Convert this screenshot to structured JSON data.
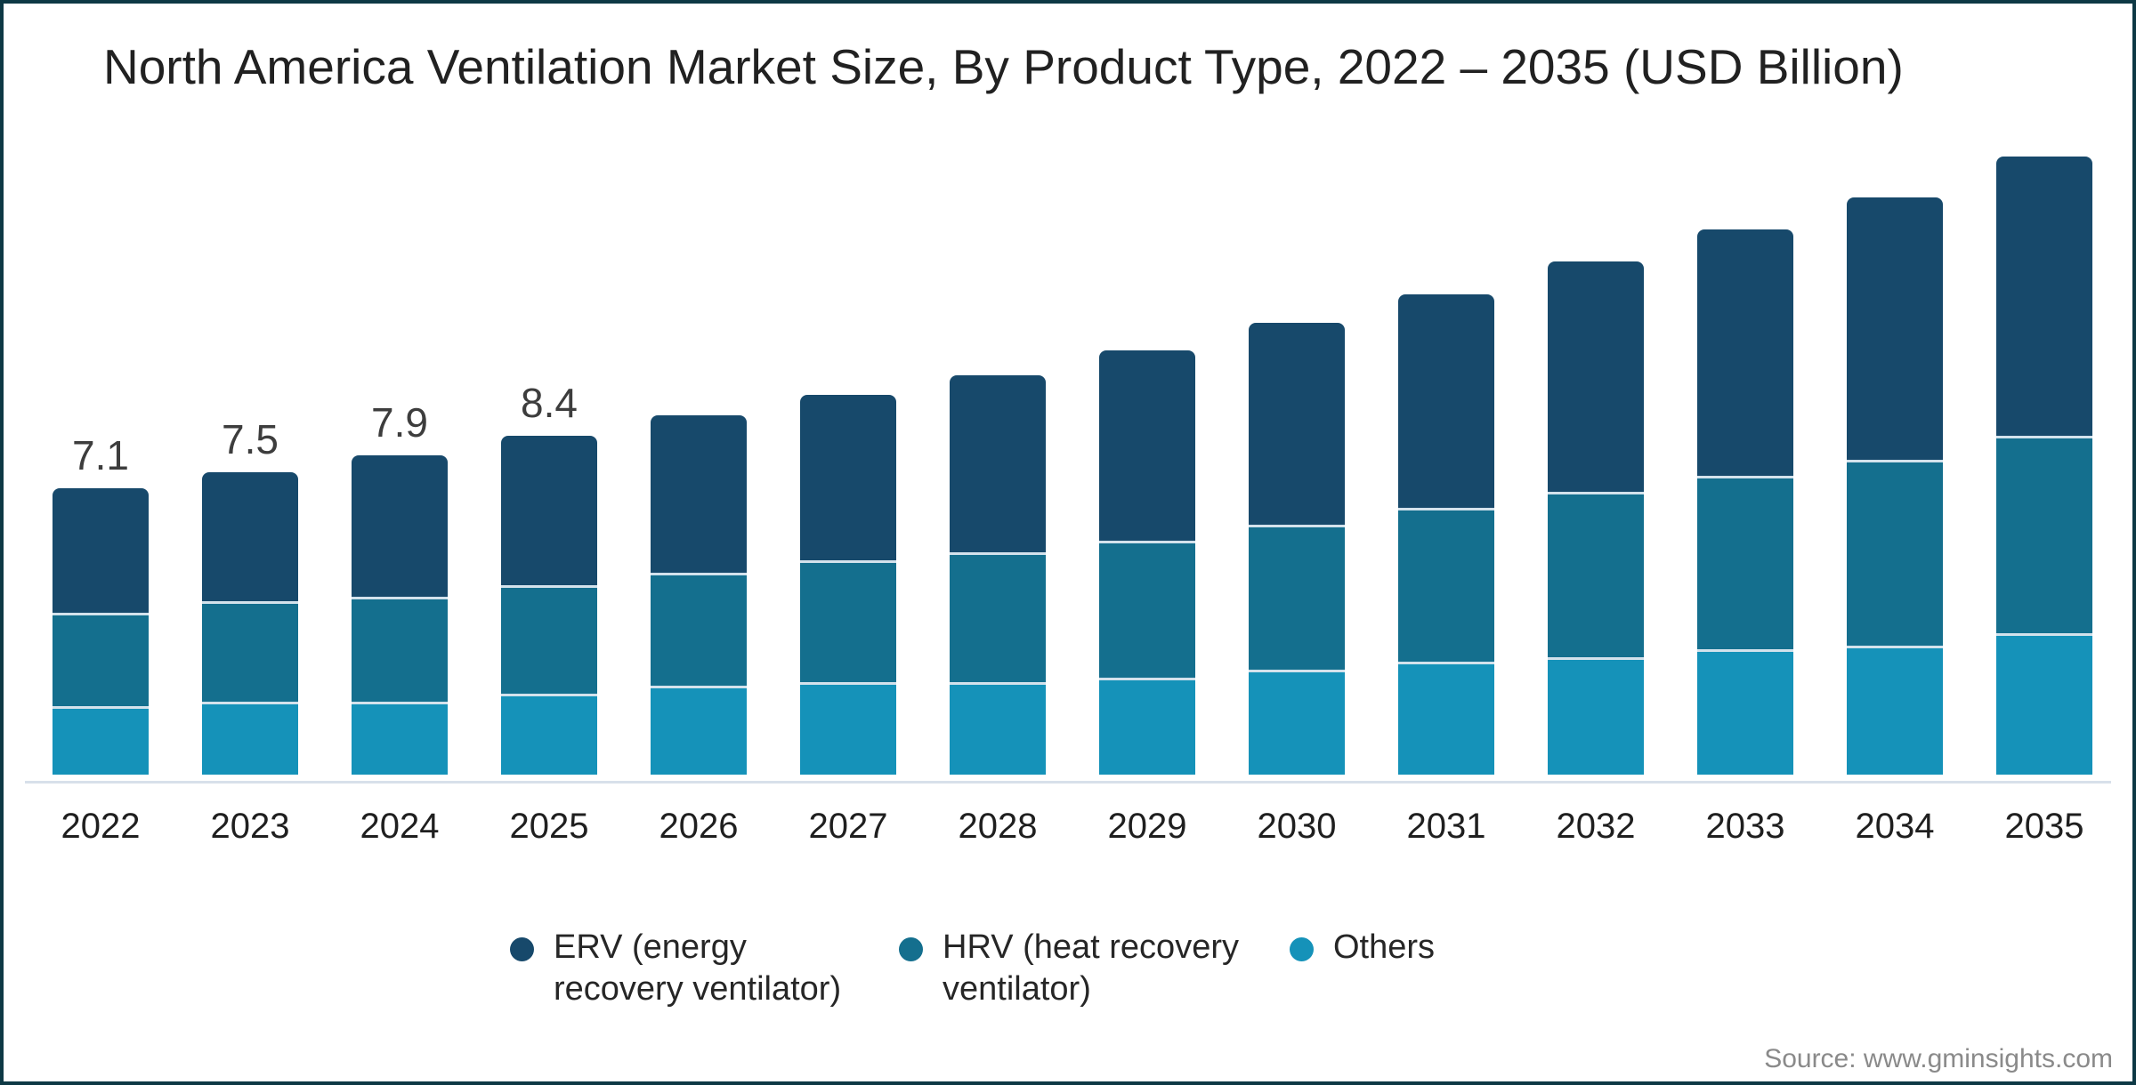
{
  "frame": {
    "border_color": "#0e3945",
    "background": "#ffffff"
  },
  "title": "North America Ventilation Market Size, By Product Type, 2022 – 2035 (USD Billion)",
  "source": "Source: www.gminsights.com",
  "legend": {
    "items": [
      {
        "id": "erv",
        "color": "#17496b",
        "lines": [
          "ERV (energy",
          "recovery ventilator)"
        ]
      },
      {
        "id": "hrv",
        "color": "#146f8e",
        "lines": [
          "HRV (heat recovery",
          "ventilator)"
        ]
      },
      {
        "id": "others",
        "color": "#1592b9",
        "lines": [
          "Others"
        ]
      }
    ]
  },
  "chart_data": {
    "type": "bar",
    "stacked": true,
    "title": "North America Ventilation Market Size, By Product Type, 2022 – 2035 (USD Billion)",
    "unit": "USD Billion",
    "xlabel": "",
    "ylabel": "",
    "ylim": [
      0,
      16
    ],
    "grid": false,
    "legend_position": "bottom",
    "categories": [
      "2022",
      "2023",
      "2024",
      "2025",
      "2026",
      "2027",
      "2028",
      "2029",
      "2030",
      "2031",
      "2032",
      "2033",
      "2034",
      "2035"
    ],
    "series": [
      {
        "name": "ERV (energy recovery ventilator)",
        "color": "#17496b",
        "values": [
          3.1,
          3.2,
          3.5,
          3.7,
          3.9,
          4.1,
          4.4,
          4.7,
          5.0,
          5.3,
          5.7,
          6.1,
          6.5,
          6.9
        ]
      },
      {
        "name": "HRV (heat recovery ventilator)",
        "color": "#146f8e",
        "values": [
          2.3,
          2.5,
          2.6,
          2.7,
          2.8,
          3.0,
          3.2,
          3.4,
          3.6,
          3.8,
          4.1,
          4.3,
          4.6,
          4.9
        ]
      },
      {
        "name": "Others",
        "color": "#1592b9",
        "values": [
          1.7,
          1.8,
          1.8,
          2.0,
          2.2,
          2.3,
          2.3,
          2.4,
          2.6,
          2.8,
          2.9,
          3.1,
          3.2,
          3.5
        ]
      }
    ],
    "totals": [
      7.1,
      7.5,
      7.9,
      8.4,
      8.9,
      9.4,
      9.9,
      10.5,
      11.2,
      11.9,
      12.7,
      13.5,
      14.3,
      15.3
    ],
    "value_labels": [
      "7.1",
      "7.5",
      "7.9",
      "8.4",
      "",
      "",
      "",
      "",
      "",
      "",
      "",
      "",
      "",
      ""
    ]
  }
}
